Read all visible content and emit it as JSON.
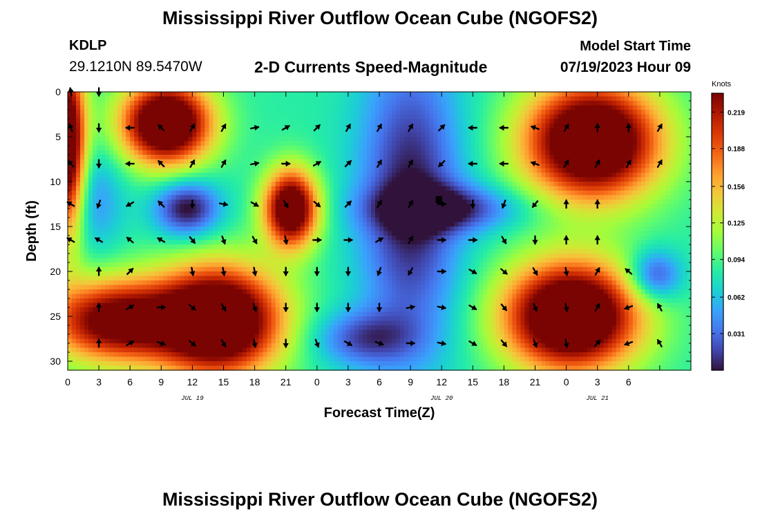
{
  "header": {
    "title": "Mississippi River Outflow Ocean Cube (NGOFS2)",
    "station": "KDLP",
    "coordinates": "29.1210N  89.5470W",
    "subtitle": "2-D Currents Speed-Magnitude",
    "model_start_label": "Model Start Time",
    "model_start_value": "07/19/2023 Hour 09"
  },
  "footer": {
    "title": "Mississippi River Outflow Ocean Cube (NGOFS2)"
  },
  "colors": {
    "colormap": [
      "#30123b",
      "#4145ab",
      "#4675ed",
      "#39a2fc",
      "#1bcfd4",
      "#24eca6",
      "#61fc6c",
      "#a4fc3b",
      "#d1e834",
      "#f3c63a",
      "#fe9b2d",
      "#f36315",
      "#d93806",
      "#b11901",
      "#7a0402"
    ],
    "arrow": "#000000"
  },
  "chart_data": {
    "type": "heatmap",
    "xlabel": "Forecast Time(Z)",
    "ylabel": "Depth (ft)",
    "x_range": [
      0,
      60
    ],
    "y_range": [
      0,
      31
    ],
    "y_inverted": true,
    "x_tick_values": [
      0,
      3,
      6,
      9,
      12,
      15,
      18,
      21,
      24,
      27,
      30,
      33,
      36,
      39,
      42,
      45,
      48,
      51,
      54,
      57,
      60
    ],
    "x_tick_labels": [
      "0",
      "3",
      "6",
      "9",
      "12",
      "15",
      "18",
      "21",
      "0",
      "3",
      "6",
      "9",
      "12",
      "15",
      "18",
      "21",
      "0",
      "3",
      "6"
    ],
    "x_tick_label_values": [
      0,
      3,
      6,
      9,
      12,
      15,
      18,
      21,
      24,
      27,
      30,
      33,
      36,
      39,
      42,
      45,
      48,
      51,
      54
    ],
    "y_tick_values": [
      0,
      5,
      10,
      15,
      20,
      25,
      30
    ],
    "y_tick_labels": [
      "0",
      "5",
      "10",
      "15",
      "20",
      "25",
      "30"
    ],
    "date_labels": [
      {
        "text": "JUL 19",
        "x": 12
      },
      {
        "text": "JUL 20",
        "x": 36
      },
      {
        "text": "JUL 21",
        "x": 51
      }
    ],
    "colorbar": {
      "unit": "Knots",
      "range": [
        0.0,
        0.235
      ],
      "ticks": [
        0.219,
        0.188,
        0.156,
        0.125,
        0.094,
        0.062,
        0.031
      ],
      "tick_labels": [
        "0.219",
        "0.188",
        "0.156",
        "0.125",
        "0.094",
        "0.062",
        "0.031"
      ]
    },
    "speed_blobs": [
      {
        "x": 0,
        "y": 6,
        "sx": 1.2,
        "sy": 7,
        "v": 0.2
      },
      {
        "x": 9.5,
        "y": 3.5,
        "sx": 3,
        "sy": 3.2,
        "v": 0.22
      },
      {
        "x": 21.5,
        "y": 13,
        "sx": 1.8,
        "sy": 3,
        "v": 0.2
      },
      {
        "x": 14.5,
        "y": 25.5,
        "sx": 4.2,
        "sy": 4.2,
        "v": 0.23
      },
      {
        "x": 50.5,
        "y": 5.5,
        "sx": 4.5,
        "sy": 4.5,
        "v": 0.225
      },
      {
        "x": 48.5,
        "y": 25,
        "sx": 4.5,
        "sy": 4.2,
        "v": 0.23
      },
      {
        "x": 4.5,
        "y": 25.5,
        "sx": 4.5,
        "sy": 3.2,
        "v": 0.17
      },
      {
        "x": 11.5,
        "y": 13,
        "sx": 2.2,
        "sy": 2.2,
        "v": -0.09
      },
      {
        "x": 33,
        "y": 12,
        "sx": 3.5,
        "sy": 12,
        "v": -0.085
      },
      {
        "x": 36.5,
        "y": 13,
        "sx": 5,
        "sy": 1.8,
        "v": -0.07
      },
      {
        "x": 28.5,
        "y": 27.5,
        "sx": 3.5,
        "sy": 2.2,
        "v": -0.06
      },
      {
        "x": 56.5,
        "y": 20.5,
        "sx": 1.8,
        "sy": 2,
        "v": -0.075
      },
      {
        "x": 2.5,
        "y": 12,
        "sx": 2,
        "sy": 4,
        "v": -0.04
      }
    ],
    "base_speed": 0.085,
    "arrow_x_values": [
      0.3,
      3,
      6,
      9,
      12,
      15,
      18,
      21,
      24,
      27,
      30,
      33,
      36,
      39,
      42,
      45,
      48,
      51,
      54,
      57,
      60
    ],
    "arrow_rows": [
      {
        "depth": 0,
        "dirs": [
          350,
          180,
          null,
          null,
          null,
          null,
          null,
          null,
          null,
          null,
          null,
          null,
          null,
          null,
          null,
          null,
          null,
          null,
          null,
          null,
          null
        ]
      },
      {
        "depth": 4,
        "dirs": [
          340,
          180,
          270,
          315,
          30,
          30,
          80,
          60,
          45,
          30,
          30,
          30,
          45,
          270,
          270,
          290,
          30,
          0,
          0,
          30,
          null
        ]
      },
      {
        "depth": 8,
        "dirs": [
          320,
          180,
          270,
          315,
          30,
          30,
          80,
          90,
          60,
          45,
          30,
          30,
          225,
          270,
          270,
          290,
          30,
          30,
          30,
          30,
          null
        ]
      },
      {
        "depth": 12.5,
        "dirs": [
          300,
          200,
          240,
          315,
          180,
          100,
          120,
          150,
          130,
          45,
          30,
          30,
          90,
          180,
          200,
          220,
          0,
          0,
          null,
          null,
          null
        ]
      },
      {
        "depth": 16.5,
        "dirs": [
          300,
          300,
          310,
          300,
          140,
          160,
          150,
          170,
          90,
          90,
          60,
          30,
          90,
          90,
          150,
          180,
          0,
          0,
          null,
          null,
          null
        ]
      },
      {
        "depth": 20,
        "dirs": null,
        "default": [
          null,
          0,
          45,
          null,
          170,
          170,
          170,
          180,
          180,
          180,
          200,
          210,
          90,
          120,
          130,
          150,
          170,
          30,
          310,
          null,
          null
        ]
      },
      {
        "depth": 24,
        "dirs": [
          null,
          0,
          60,
          90,
          130,
          150,
          160,
          180,
          180,
          180,
          180,
          80,
          100,
          120,
          140,
          160,
          170,
          30,
          250,
          330,
          null
        ]
      },
      {
        "depth": 28,
        "dirs": [
          null,
          0,
          60,
          110,
          130,
          150,
          170,
          180,
          160,
          120,
          110,
          90,
          100,
          120,
          140,
          160,
          170,
          40,
          250,
          330,
          null
        ]
      }
    ]
  }
}
